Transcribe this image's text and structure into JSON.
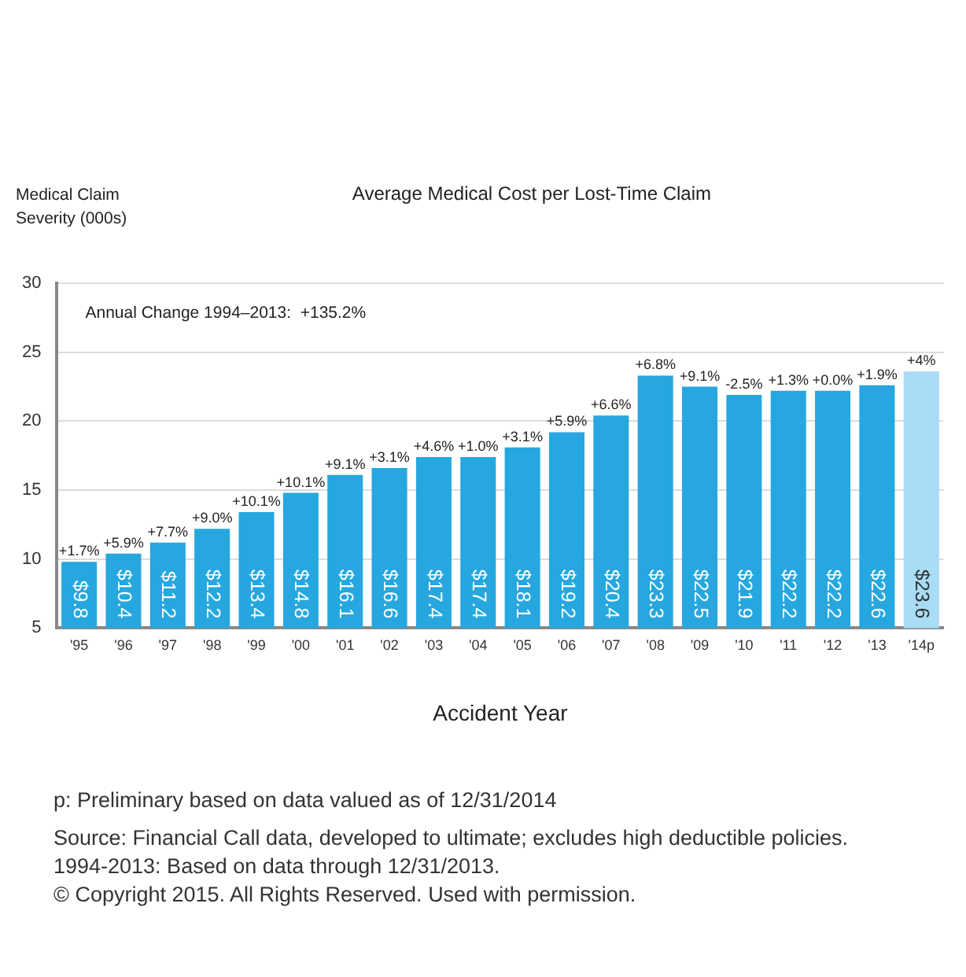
{
  "chart_data": {
    "type": "bar",
    "title": "Average Medical Cost per Lost-Time Claim",
    "ylabel": "Medical Claim\nSeverity (000s)",
    "xlabel": "Accident Year",
    "categories": [
      "'95",
      "'96",
      "'97",
      "'98",
      "'99",
      "'00",
      "'01",
      "'02",
      "'03",
      "'04",
      "'05",
      "'06",
      "'07",
      "'08",
      "'09",
      "'10",
      "'11",
      "'12",
      "'13",
      "'14p"
    ],
    "values": [
      9.8,
      10.4,
      11.2,
      12.2,
      13.4,
      14.8,
      16.1,
      16.6,
      17.4,
      17.4,
      18.1,
      19.2,
      20.4,
      23.3,
      22.5,
      21.9,
      22.2,
      22.2,
      22.6,
      23.6
    ],
    "value_labels": [
      "$9.8",
      "$10.4",
      "$11.2",
      "$12.2",
      "$13.4",
      "$14.8",
      "$16.1",
      "$16.6",
      "$17.4",
      "$17.4",
      "$18.1",
      "$19.2",
      "$20.4",
      "$23.3",
      "$22.5",
      "$21.9",
      "$22.2",
      "$22.2",
      "$22.6",
      "$23.6"
    ],
    "colors": [
      "#27a7df",
      "#27a7df",
      "#27a7df",
      "#27a7df",
      "#27a7df",
      "#27a7df",
      "#27a7df",
      "#27a7df",
      "#27a7df",
      "#27a7df",
      "#27a7df",
      "#27a7df",
      "#27a7df",
      "#27a7df",
      "#27a7df",
      "#27a7df",
      "#27a7df",
      "#27a7df",
      "#27a7df",
      "#a9dcf5"
    ],
    "ylim": [
      5,
      30
    ],
    "yticks": [
      5,
      10,
      15,
      20,
      25,
      30
    ],
    "grid": "y",
    "legend": false,
    "annotations": [
      "Annual Change 1994–2013:  +135.2%",
      {
        "text": "+1.7%",
        "x": "'95",
        "y": 9.8
      },
      {
        "text": "+5.9%",
        "x": "'96",
        "y": 10.4
      },
      {
        "text": "+7.7%",
        "x": "'97",
        "y": 11.2
      },
      {
        "text": "+9.0%",
        "x": "'98",
        "y": 12.2
      },
      {
        "text": "+10.1%",
        "x": "'99",
        "y": 13.4
      },
      {
        "text": "+10.1%",
        "x": "'00",
        "y": 14.8
      },
      {
        "text": "+9.1%",
        "x": "'01",
        "y": 16.1
      },
      {
        "text": "+3.1%",
        "x": "'02",
        "y": 16.6
      },
      {
        "text": "+4.6%",
        "x": "'03",
        "y": 17.4
      },
      {
        "text": "+1.0%",
        "x": "'04",
        "y": 17.4
      },
      {
        "text": "+3.1%",
        "x": "'05",
        "y": 18.1
      },
      {
        "text": "+5.9%",
        "x": "'06",
        "y": 19.2
      },
      {
        "text": "+6.6%",
        "x": "'07",
        "y": 20.4
      },
      {
        "text": "+6.8%",
        "x": "'08",
        "y": 23.3
      },
      {
        "text": "+9.1%",
        "x": "'09",
        "y": 22.5
      },
      {
        "text": "-2.5%",
        "x": "'10",
        "y": 21.9
      },
      {
        "text": "+1.3%",
        "x": "'11",
        "y": 22.2
      },
      {
        "text": "+0.0%",
        "x": "'12",
        "y": 22.2
      },
      {
        "text": "+1.9%",
        "x": "'13",
        "y": 22.6
      },
      {
        "text": "+4%",
        "x": "'14p",
        "y": 23.6
      },
      "p: Preliminary based on data valued as of 12/31/2014",
      "Source: Financial Call data, developed to ultimate; excludes high deductible policies. 1994-2013: Based on data through 12/31/2013.",
      "© Copyright 2015. All Rights Reserved. Used with permission."
    ]
  }
}
